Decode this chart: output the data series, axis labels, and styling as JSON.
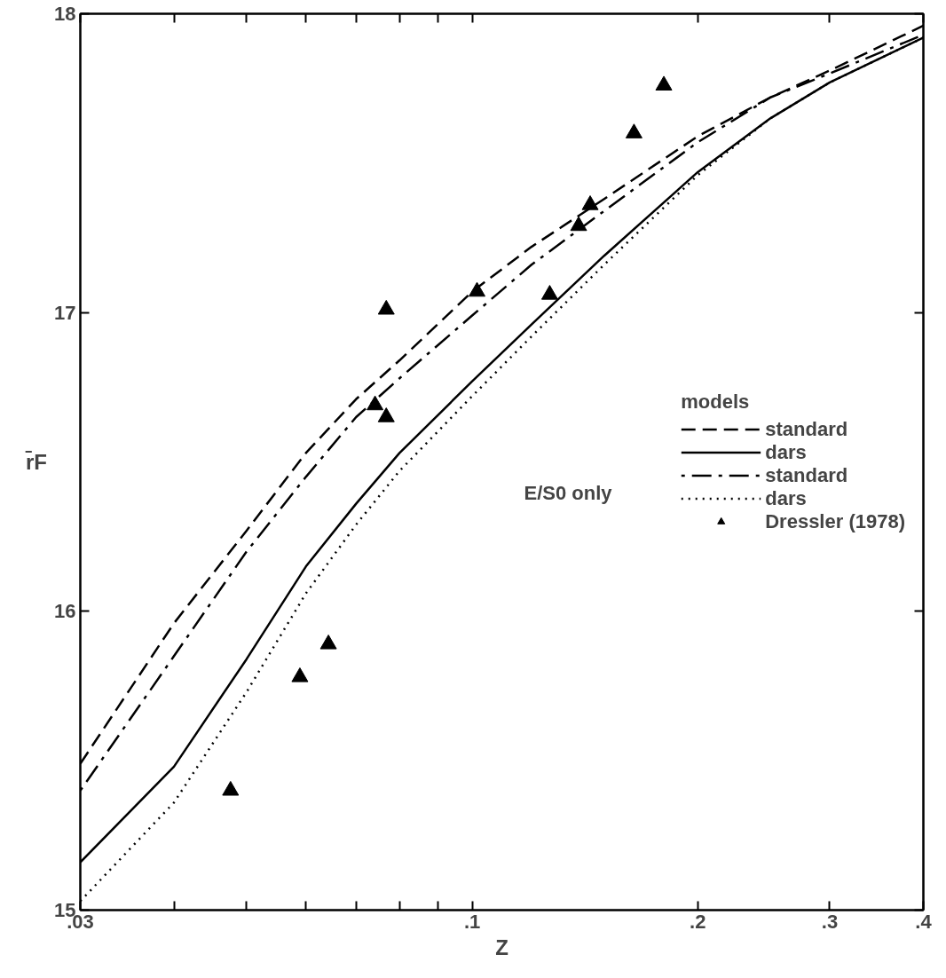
{
  "chart_data": {
    "type": "line",
    "xlabel": "Z",
    "ylabel": "r̄F",
    "legend_title": "models",
    "log": "x",
    "grid": false,
    "legend": "right",
    "xlim": [
      0.03,
      0.4
    ],
    "ylim": [
      15,
      18
    ],
    "xticks": [
      {
        "value": 0.03,
        "label": ".03"
      },
      {
        "value": 0.04,
        "label": null
      },
      {
        "value": 0.05,
        "label": null
      },
      {
        "value": 0.06,
        "label": null
      },
      {
        "value": 0.07,
        "label": null
      },
      {
        "value": 0.08,
        "label": null
      },
      {
        "value": 0.09,
        "label": null
      },
      {
        "value": 0.1,
        "label": ".1"
      },
      {
        "value": 0.2,
        "label": ".2"
      },
      {
        "value": 0.3,
        "label": ".3"
      },
      {
        "value": 0.4,
        "label": ".4"
      }
    ],
    "yticks": [
      15,
      16,
      17,
      18
    ],
    "x": [
      0.03,
      0.04,
      0.05,
      0.06,
      0.07,
      0.08,
      0.1,
      0.12,
      0.15,
      0.2,
      0.25,
      0.3,
      0.4
    ],
    "annotations": [
      "E/S0 only"
    ],
    "series": [
      {
        "name": "standard",
        "color": "#000000",
        "line_style": "dashed",
        "marker": "none",
        "values": [
          15.49,
          15.96,
          16.27,
          16.53,
          16.71,
          16.84,
          17.07,
          17.22,
          17.38,
          17.59,
          17.72,
          17.81,
          17.96
        ]
      },
      {
        "name": "dars",
        "color": "#000000",
        "line_style": "solid",
        "marker": "none",
        "values": [
          15.16,
          15.48,
          15.84,
          16.15,
          16.36,
          16.53,
          16.77,
          16.96,
          17.19,
          17.47,
          17.65,
          17.77,
          17.92
        ]
      },
      {
        "name": "standard",
        "color": "#000000",
        "line_style": "dashdot",
        "marker": "none",
        "values": [
          15.4,
          15.85,
          16.2,
          16.45,
          16.65,
          16.78,
          16.99,
          17.16,
          17.34,
          17.57,
          17.72,
          17.8,
          17.93
        ]
      },
      {
        "name": "dars",
        "color": "#000000",
        "line_style": "dotted",
        "marker": "none",
        "values": [
          15.03,
          15.36,
          15.73,
          16.06,
          16.29,
          16.47,
          16.72,
          16.92,
          17.16,
          17.46,
          17.65,
          17.77,
          17.92
        ]
      },
      {
        "name": "Dressler (1978)",
        "type": "scatter",
        "color": "#000000",
        "marker": "triangle",
        "x": [
          0.0476,
          0.0589,
          0.0643,
          0.0742,
          0.0768,
          0.0768,
          0.1015,
          0.1269,
          0.1387,
          0.1437,
          0.1644,
          0.1802
        ],
        "values": [
          15.4,
          15.78,
          15.89,
          16.69,
          16.65,
          17.01,
          17.07,
          17.06,
          17.29,
          17.36,
          17.6,
          17.76
        ]
      }
    ]
  }
}
